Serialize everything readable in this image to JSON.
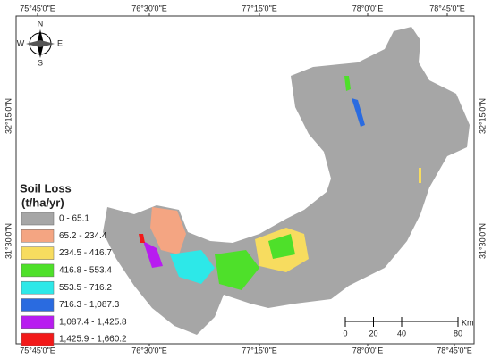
{
  "map": {
    "top_labels": [
      "75°45'0\"E",
      "76°30'0\"E",
      "77°15'0\"E",
      "78°0'0\"E",
      "78°45'0\"E"
    ],
    "bottom_labels": [
      "75°45'0\"E",
      "76°30'0\"E",
      "77°15'0\"E",
      "78°0'0\"E",
      "78°45'0\"E"
    ],
    "left_labels": [
      "32°15'0\"N",
      "31°30'0\"N"
    ],
    "right_labels": [
      "32°15'0\"N",
      "31°30'0\"N"
    ],
    "compass": {
      "north": "N",
      "east": "E",
      "south": "S",
      "west": "W"
    },
    "legend": {
      "title": "Soil Loss",
      "unit": "(t/ha/yr)",
      "classes": [
        {
          "label": "0 - 65.1",
          "color": "#a6a6a6"
        },
        {
          "label": "65.2 - 234.4",
          "color": "#f4a582"
        },
        {
          "label": "234.5 - 416.7",
          "color": "#f7dc5f"
        },
        {
          "label": "416.8 - 553.4",
          "color": "#4ee02a"
        },
        {
          "label": "553.5 - 716.2",
          "color": "#2de8e8"
        },
        {
          "label": "716.3 - 1,087.3",
          "color": "#2a6be0"
        },
        {
          "label": "1,087.4 - 1,425.8",
          "color": "#b81cf0"
        },
        {
          "label": "1,425.9 - 1,660.2",
          "color": "#f21a1a"
        }
      ]
    },
    "scale": {
      "ticks": [
        0,
        20,
        40,
        80
      ],
      "unit": "Km"
    }
  }
}
